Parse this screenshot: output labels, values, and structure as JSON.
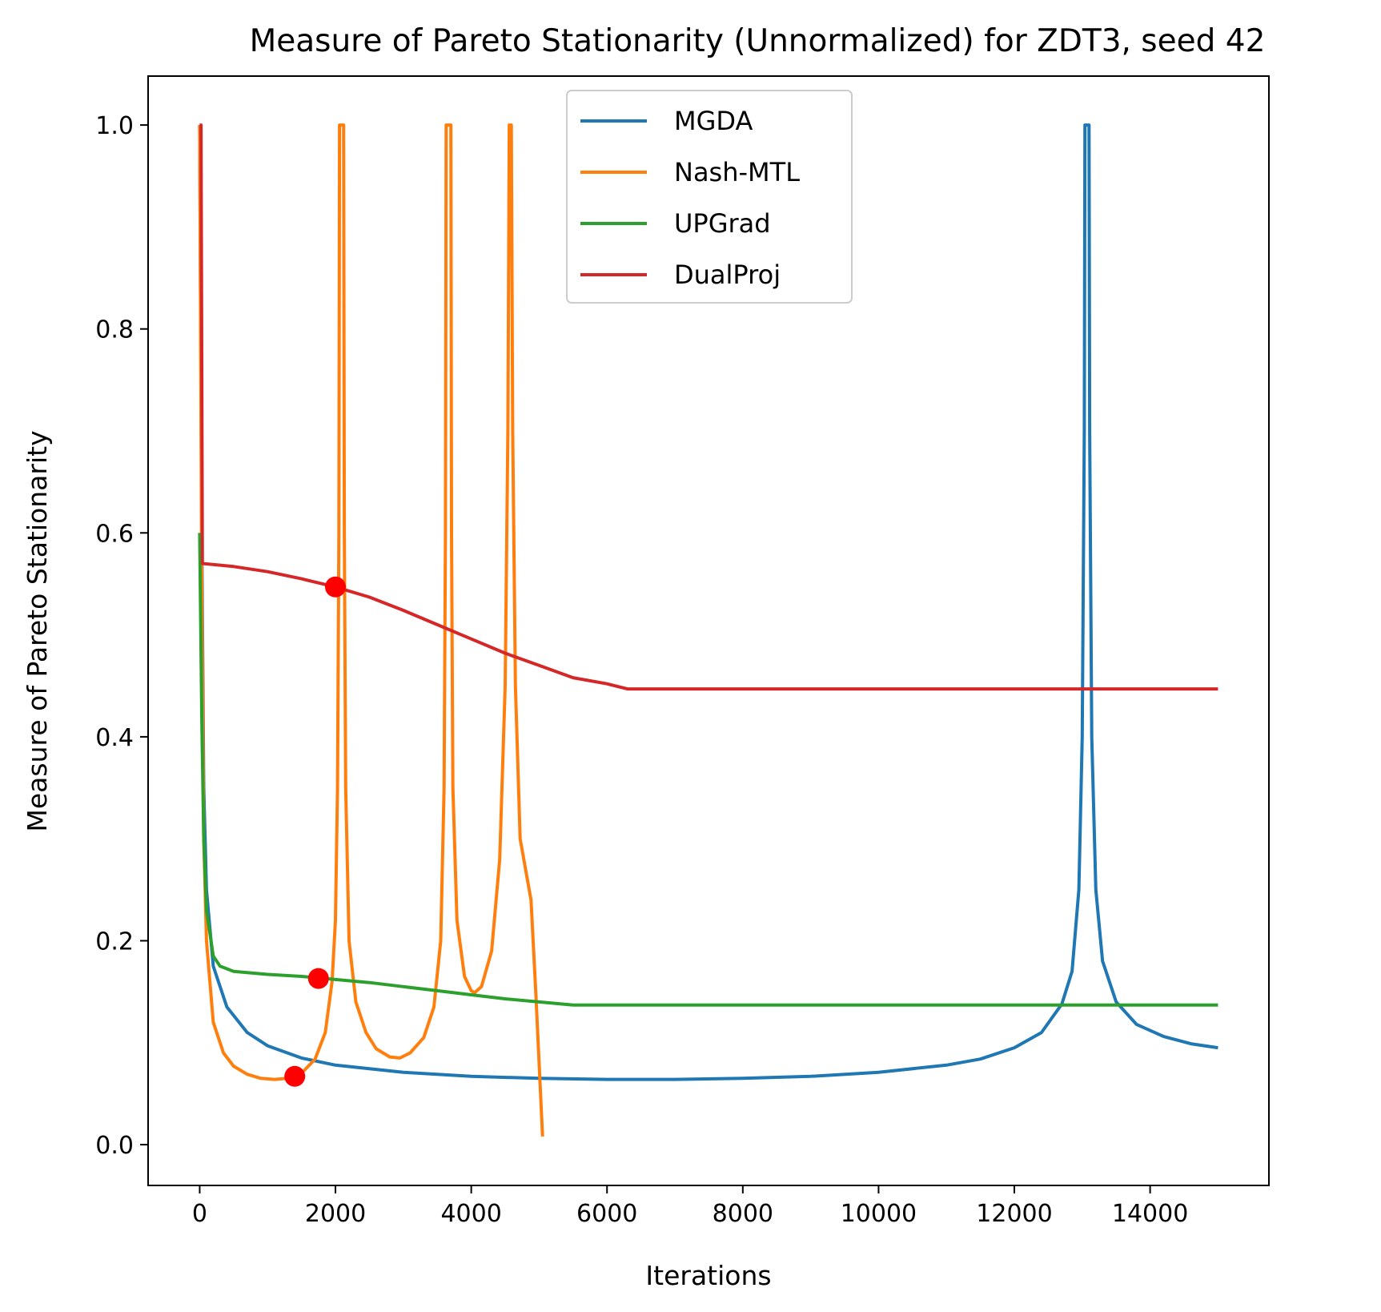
{
  "chart_data": {
    "type": "line",
    "title": "Measure of Pareto Stationarity (Unnormalized) for ZDT3, seed 42",
    "xlabel": "Iterations",
    "ylabel": "Measure of Pareto Stationarity",
    "xlim": [
      -760,
      15750
    ],
    "ylim": [
      -0.04,
      1.048
    ],
    "x_ticks": [
      0,
      2000,
      4000,
      6000,
      8000,
      10000,
      12000,
      14000
    ],
    "x_tick_labels": [
      "0",
      "2000",
      "4000",
      "6000",
      "8000",
      "10000",
      "12000",
      "14000"
    ],
    "y_ticks": [
      0.0,
      0.2,
      0.4,
      0.6,
      0.8,
      1.0
    ],
    "y_tick_labels": [
      "0.0",
      "0.2",
      "0.4",
      "0.6",
      "0.8",
      "1.0"
    ],
    "grid": false,
    "legend_position": "top-center",
    "series": [
      {
        "name": "MGDA",
        "color": "#1f77b4",
        "points": [
          [
            0,
            1.0
          ],
          [
            30,
            0.6
          ],
          [
            60,
            0.35
          ],
          [
            100,
            0.25
          ],
          [
            200,
            0.175
          ],
          [
            400,
            0.135
          ],
          [
            700,
            0.11
          ],
          [
            1000,
            0.097
          ],
          [
            1500,
            0.085
          ],
          [
            2000,
            0.078
          ],
          [
            3000,
            0.071
          ],
          [
            4000,
            0.067
          ],
          [
            5000,
            0.065
          ],
          [
            6000,
            0.064
          ],
          [
            7000,
            0.064
          ],
          [
            8000,
            0.065
          ],
          [
            9000,
            0.067
          ],
          [
            10000,
            0.071
          ],
          [
            11000,
            0.078
          ],
          [
            11500,
            0.084
          ],
          [
            12000,
            0.095
          ],
          [
            12400,
            0.11
          ],
          [
            12700,
            0.138
          ],
          [
            12850,
            0.17
          ],
          [
            12950,
            0.25
          ],
          [
            13000,
            0.4
          ],
          [
            13030,
            0.7
          ],
          [
            13040,
            1.0
          ],
          [
            13100,
            1.0
          ],
          [
            13110,
            0.7
          ],
          [
            13140,
            0.4
          ],
          [
            13200,
            0.25
          ],
          [
            13300,
            0.18
          ],
          [
            13500,
            0.14
          ],
          [
            13800,
            0.118
          ],
          [
            14200,
            0.106
          ],
          [
            14600,
            0.099
          ],
          [
            15000,
            0.095
          ]
        ]
      },
      {
        "name": "Nash-MTL",
        "color": "#ff7f0e",
        "points": [
          [
            0,
            1.0
          ],
          [
            30,
            0.55
          ],
          [
            60,
            0.3
          ],
          [
            100,
            0.2
          ],
          [
            200,
            0.12
          ],
          [
            350,
            0.09
          ],
          [
            500,
            0.077
          ],
          [
            700,
            0.069
          ],
          [
            900,
            0.065
          ],
          [
            1100,
            0.064
          ],
          [
            1300,
            0.065
          ],
          [
            1500,
            0.07
          ],
          [
            1700,
            0.084
          ],
          [
            1850,
            0.11
          ],
          [
            1950,
            0.16
          ],
          [
            2000,
            0.22
          ],
          [
            2030,
            0.35
          ],
          [
            2050,
            0.6
          ],
          [
            2060,
            1.0
          ],
          [
            2120,
            1.0
          ],
          [
            2130,
            0.6
          ],
          [
            2150,
            0.35
          ],
          [
            2200,
            0.2
          ],
          [
            2300,
            0.14
          ],
          [
            2450,
            0.11
          ],
          [
            2600,
            0.094
          ],
          [
            2800,
            0.086
          ],
          [
            2950,
            0.085
          ],
          [
            3100,
            0.09
          ],
          [
            3300,
            0.105
          ],
          [
            3450,
            0.135
          ],
          [
            3550,
            0.2
          ],
          [
            3600,
            0.35
          ],
          [
            3620,
            0.6
          ],
          [
            3630,
            1.0
          ],
          [
            3700,
            1.0
          ],
          [
            3710,
            0.6
          ],
          [
            3730,
            0.35
          ],
          [
            3790,
            0.22
          ],
          [
            3900,
            0.165
          ],
          [
            4000,
            0.151
          ],
          [
            4050,
            0.149
          ],
          [
            4150,
            0.155
          ],
          [
            4300,
            0.19
          ],
          [
            4420,
            0.28
          ],
          [
            4500,
            0.45
          ],
          [
            4540,
            0.7
          ],
          [
            4560,
            1.0
          ],
          [
            4590,
            1.0
          ],
          [
            4610,
            0.7
          ],
          [
            4650,
            0.45
          ],
          [
            4720,
            0.3
          ],
          [
            4800,
            0.27
          ],
          [
            4880,
            0.24
          ],
          [
            4950,
            0.15
          ],
          [
            5000,
            0.08
          ],
          [
            5050,
            0.008
          ]
        ]
      },
      {
        "name": "UPGrad",
        "color": "#2ca02c",
        "points": [
          [
            0,
            0.6
          ],
          [
            30,
            0.42
          ],
          [
            60,
            0.3
          ],
          [
            100,
            0.23
          ],
          [
            200,
            0.185
          ],
          [
            300,
            0.175
          ],
          [
            500,
            0.17
          ],
          [
            1000,
            0.167
          ],
          [
            1500,
            0.165
          ],
          [
            2000,
            0.162
          ],
          [
            2500,
            0.159
          ],
          [
            3000,
            0.155
          ],
          [
            3500,
            0.151
          ],
          [
            4000,
            0.147
          ],
          [
            4500,
            0.143
          ],
          [
            5000,
            0.14
          ],
          [
            5500,
            0.137
          ],
          [
            6000,
            0.137
          ],
          [
            8000,
            0.137
          ],
          [
            10000,
            0.137
          ],
          [
            12000,
            0.137
          ],
          [
            14000,
            0.137
          ],
          [
            15000,
            0.137
          ]
        ]
      },
      {
        "name": "DualProj",
        "color": "#d62728",
        "points": [
          [
            0,
            1.0
          ],
          [
            20,
            1.0
          ],
          [
            40,
            0.57
          ],
          [
            500,
            0.567
          ],
          [
            1000,
            0.562
          ],
          [
            1500,
            0.555
          ],
          [
            2000,
            0.547
          ],
          [
            2500,
            0.537
          ],
          [
            3000,
            0.524
          ],
          [
            3500,
            0.51
          ],
          [
            4000,
            0.496
          ],
          [
            4500,
            0.482
          ],
          [
            5000,
            0.47
          ],
          [
            5500,
            0.458
          ],
          [
            6000,
            0.452
          ],
          [
            6300,
            0.447
          ],
          [
            6500,
            0.447
          ],
          [
            8000,
            0.447
          ],
          [
            10000,
            0.447
          ],
          [
            12000,
            0.447
          ],
          [
            14000,
            0.447
          ],
          [
            15000,
            0.447
          ]
        ]
      }
    ],
    "markers": {
      "color": "#ff0000",
      "points": [
        [
          2000,
          0.547
        ],
        [
          1750,
          0.163
        ],
        [
          1400,
          0.067
        ]
      ]
    }
  }
}
